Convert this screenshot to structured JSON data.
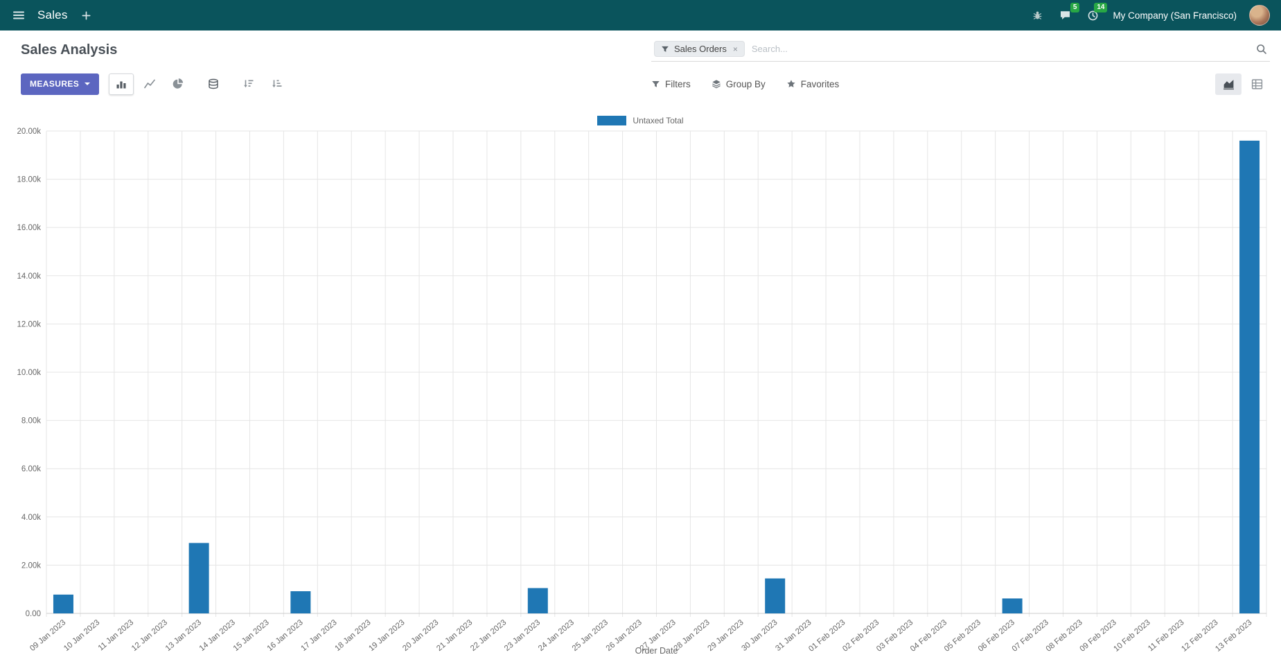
{
  "colors": {
    "topbar_bg": "#0a545c",
    "primary_button": "#5c66c0",
    "badge_green": "#28a745",
    "bar_blue": "#1f77b4"
  },
  "topbar": {
    "app_name": "Sales",
    "company_name": "My Company (San Francisco)",
    "message_badge": "5",
    "activity_badge": "14"
  },
  "control_panel": {
    "title": "Sales Analysis",
    "measures_button": "MEASURES",
    "filters_button": "Filters",
    "group_by_button": "Group By",
    "favorites_button": "Favorites",
    "search": {
      "facet_label": "Sales Orders",
      "facet_remove": "×",
      "placeholder": "Search..."
    }
  },
  "chart_data": {
    "type": "bar",
    "title": "",
    "xlabel": "Order Date",
    "ylabel": "",
    "ylim": [
      0,
      20000
    ],
    "grid": true,
    "legend_position": "top",
    "y_ticks": [
      0,
      2000,
      4000,
      6000,
      8000,
      10000,
      12000,
      14000,
      16000,
      18000,
      20000
    ],
    "y_tick_labels": [
      "0.00",
      "2.00k",
      "4.00k",
      "6.00k",
      "8.00k",
      "10.00k",
      "12.00k",
      "14.00k",
      "16.00k",
      "18.00k",
      "20.00k"
    ],
    "categories": [
      "09 Jan 2023",
      "10 Jan 2023",
      "11 Jan 2023",
      "12 Jan 2023",
      "13 Jan 2023",
      "14 Jan 2023",
      "15 Jan 2023",
      "16 Jan 2023",
      "17 Jan 2023",
      "18 Jan 2023",
      "19 Jan 2023",
      "20 Jan 2023",
      "21 Jan 2023",
      "22 Jan 2023",
      "23 Jan 2023",
      "24 Jan 2023",
      "25 Jan 2023",
      "26 Jan 2023",
      "27 Jan 2023",
      "28 Jan 2023",
      "29 Jan 2023",
      "30 Jan 2023",
      "31 Jan 2023",
      "01 Feb 2023",
      "02 Feb 2023",
      "03 Feb 2023",
      "04 Feb 2023",
      "05 Feb 2023",
      "06 Feb 2023",
      "07 Feb 2023",
      "08 Feb 2023",
      "09 Feb 2023",
      "10 Feb 2023",
      "11 Feb 2023",
      "12 Feb 2023",
      "13 Feb 2023"
    ],
    "series": [
      {
        "name": "Untaxed Total",
        "color": "#1f77b4",
        "values": [
          780,
          0,
          0,
          0,
          2920,
          0,
          0,
          920,
          0,
          0,
          0,
          0,
          0,
          0,
          1050,
          0,
          0,
          0,
          0,
          0,
          0,
          1450,
          0,
          0,
          0,
          0,
          0,
          0,
          620,
          0,
          0,
          0,
          0,
          0,
          0,
          19600
        ]
      }
    ]
  }
}
